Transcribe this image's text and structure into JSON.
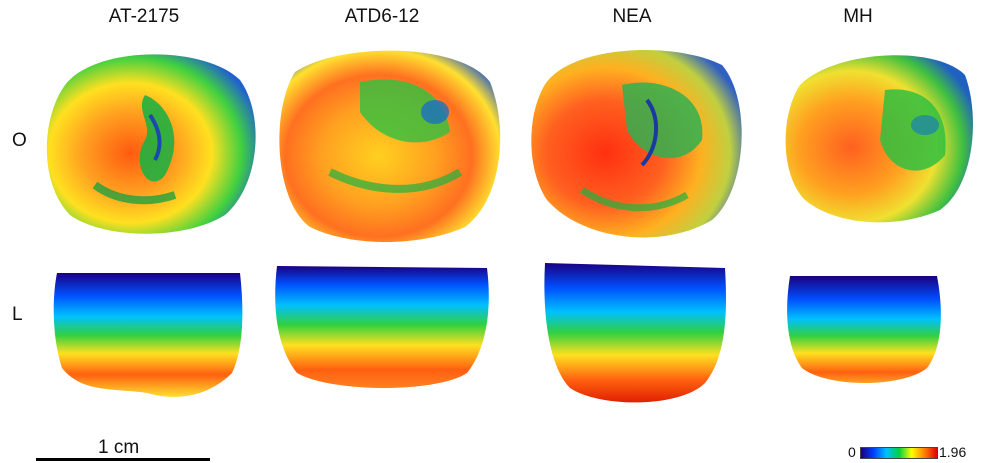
{
  "columns": [
    "AT-2175",
    "ATD6-12",
    "NEA",
    "MH"
  ],
  "rows": [
    "O",
    "L"
  ],
  "scale": {
    "label": "1 cm"
  },
  "colorbar": {
    "min": "0",
    "max": "1.96",
    "colors": [
      "#1a0080",
      "#0040ff",
      "#00c0ff",
      "#00d040",
      "#ffff00",
      "#ff8000",
      "#e00000"
    ]
  }
}
